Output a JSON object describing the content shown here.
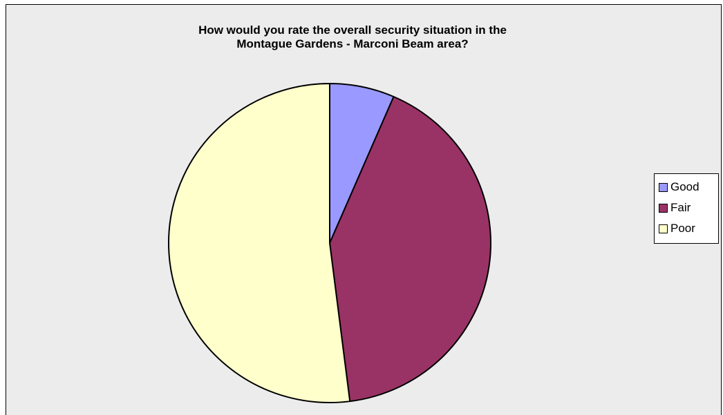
{
  "chart_data": {
    "type": "pie",
    "title_lines": [
      "How would you rate the overall security situation in the",
      "Montague Gardens - Marconi Beam area?"
    ],
    "categories": [
      "Good",
      "Fair",
      "Poor"
    ],
    "values": [
      6.5,
      41.5,
      52.0
    ],
    "colors": [
      "#9999ff",
      "#993366",
      "#ffffcc"
    ],
    "start_angle_deg": 0,
    "direction": "clockwise",
    "legend_position": "right"
  },
  "colors": {
    "plot_background": "#ececec",
    "outline": "#000000"
  }
}
